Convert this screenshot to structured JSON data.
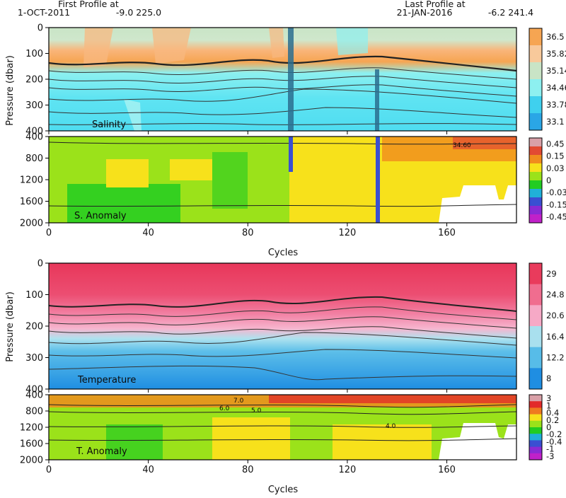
{
  "header": {
    "first_title": "First Profile at",
    "first_date": "1-OCT-2011",
    "first_coords": "-9.0 225.0",
    "last_title": "Last Profile at",
    "last_date": "21-JAN-2016",
    "last_coords": "-6.2 241.4"
  },
  "chart_data": [
    {
      "type": "heatmap",
      "title": "Salinity",
      "ylabel": "Pressure (dbar)",
      "xlim": [
        0,
        188
      ],
      "ylim": [
        400,
        0
      ],
      "yticks": [
        "0",
        "100",
        "200",
        "300",
        "400"
      ],
      "xticks": [
        "0",
        "40",
        "80",
        "120",
        "160"
      ],
      "colorbar": {
        "labels": [
          "36.5",
          "35.82",
          "35.14",
          "34.46",
          "33.78",
          "33.1"
        ],
        "colors": [
          "#f6a552",
          "#f8c99b",
          "#c9e4c6",
          "#8df0f0",
          "#3fd0ee",
          "#2aa6e6"
        ]
      }
    },
    {
      "type": "heatmap",
      "title": "S. Anomaly",
      "xlabel": "Cycles",
      "xlim": [
        0,
        188
      ],
      "ylim": [
        2000,
        400
      ],
      "yticks": [
        "400",
        "800",
        "1200",
        "1600",
        "2000"
      ],
      "xticks": [
        "0",
        "40",
        "80",
        "120",
        "160"
      ],
      "contour_labels": [
        "34.60"
      ],
      "colorbar": {
        "labels": [
          "0.45",
          "0.15",
          "0.03",
          "0",
          "-0.03",
          "-0.15",
          "-0.45"
        ],
        "colors": [
          "#d9a0a8",
          "#e24a33",
          "#f08c1e",
          "#f7e11b",
          "#9be21a",
          "#22cc22",
          "#20b0d8",
          "#3a4fd2",
          "#8a2ad4",
          "#c021c9"
        ]
      }
    },
    {
      "type": "heatmap",
      "title": "Temperature",
      "ylabel": "Pressure (dbar)",
      "xlim": [
        0,
        188
      ],
      "ylim": [
        400,
        0
      ],
      "yticks": [
        "0",
        "100",
        "200",
        "300",
        "400"
      ],
      "xticks": [
        "0",
        "40",
        "80",
        "120",
        "160"
      ],
      "colorbar": {
        "labels": [
          "29",
          "24.8",
          "20.6",
          "16.4",
          "12.2",
          "8"
        ],
        "colors": [
          "#e93b5c",
          "#f06d8f",
          "#f6a9c6",
          "#a9e0ee",
          "#57bce8",
          "#1f8ee2"
        ]
      }
    },
    {
      "type": "heatmap",
      "title": "T. Anomaly",
      "xlabel": "Cycles",
      "xlim": [
        0,
        188
      ],
      "ylim": [
        2000,
        400
      ],
      "yticks": [
        "400",
        "800",
        "1200",
        "1600",
        "2000"
      ],
      "xticks": [
        "0",
        "40",
        "80",
        "120",
        "160"
      ],
      "contour_labels": [
        "7.0",
        "6.0",
        "5.0",
        "4.0"
      ],
      "colorbar": {
        "labels": [
          "3",
          "1",
          "0.4",
          "0.2",
          "0",
          "-0.2",
          "-0.4",
          "-1",
          "-3"
        ],
        "colors": [
          "#d9a0a8",
          "#e22a2a",
          "#ef7a20",
          "#f7e11b",
          "#9be21a",
          "#22cc22",
          "#20b0d8",
          "#3a4fd2",
          "#8a2ad4",
          "#c021c9"
        ]
      }
    }
  ]
}
